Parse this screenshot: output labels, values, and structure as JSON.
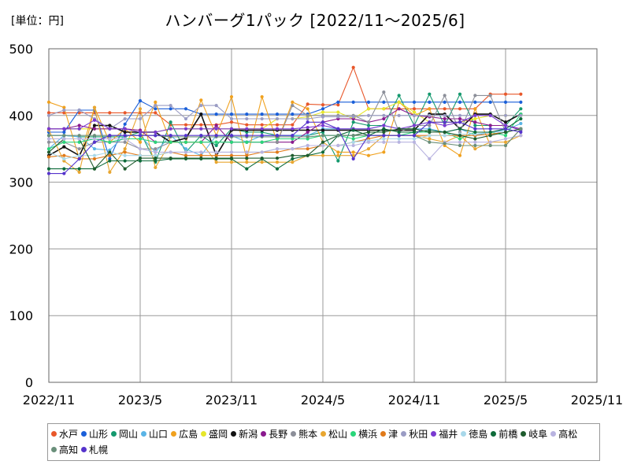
{
  "unit_label": "[単位：円]",
  "chart_data": {
    "type": "line",
    "title": "ハンバーグ1パック [2022/11～2025/6]",
    "xlabel": "",
    "ylabel": "",
    "ylim": [
      0,
      500
    ],
    "yticks": [
      0,
      100,
      200,
      300,
      400,
      500
    ],
    "x_range": [
      "2022-11",
      "2025-11"
    ],
    "x_tick_labels": [
      "2022/11",
      "2023/5",
      "2023/11",
      "2024/5",
      "2024/11",
      "2025/5",
      "2025/11"
    ],
    "grid": true,
    "legend_position": "bottom",
    "x": [
      "2022-11",
      "2022-12",
      "2023-01",
      "2023-02",
      "2023-03",
      "2023-04",
      "2023-05",
      "2023-06",
      "2023-07",
      "2023-08",
      "2023-09",
      "2023-10",
      "2023-11",
      "2023-12",
      "2024-01",
      "2024-02",
      "2024-03",
      "2024-04",
      "2024-05",
      "2024-06",
      "2024-07",
      "2024-08",
      "2024-09",
      "2024-10",
      "2024-11",
      "2024-12",
      "2025-01",
      "2025-02",
      "2025-03",
      "2025-04",
      "2025-05",
      "2025-06"
    ],
    "series": [
      {
        "name": "水戸",
        "color": "#e8572a",
        "values": [
          404,
          404,
          404,
          404,
          404,
          404,
          404,
          404,
          386,
          386,
          386,
          386,
          390,
          386,
          386,
          386,
          386,
          417,
          416,
          416,
          472,
          410,
          410,
          410,
          410,
          410,
          410,
          410,
          410,
          432,
          432,
          432
        ]
      },
      {
        "name": "山形",
        "color": "#1a5fd9",
        "values": [
          375,
          375,
          408,
          408,
          335,
          387,
          422,
          410,
          410,
          410,
          402,
          402,
          402,
          402,
          402,
          402,
          402,
          402,
          410,
          420,
          420,
          420,
          420,
          420,
          420,
          420,
          420,
          420,
          420,
          420,
          420,
          420
        ]
      },
      {
        "name": "岡山",
        "color": "#14996e",
        "values": [
          370,
          370,
          368,
          368,
          368,
          368,
          375,
          330,
          390,
          345,
          370,
          355,
          380,
          375,
          375,
          370,
          370,
          370,
          375,
          332,
          390,
          385,
          385,
          430,
          385,
          432,
          385,
          432,
          385,
          385,
          385,
          410
        ]
      },
      {
        "name": "山口",
        "color": "#5ab4e6",
        "values": [
          350,
          370,
          368,
          350,
          348,
          370,
          370,
          345,
          370,
          350,
          340,
          370,
          370,
          360,
          370,
          370,
          370,
          370,
          380,
          380,
          380,
          380,
          385,
          380,
          380,
          380,
          375,
          380,
          370,
          375,
          378,
          388
        ]
      },
      {
        "name": "広島",
        "color": "#f0a11e",
        "values": [
          420,
          412,
          335,
          412,
          360,
          380,
          360,
          420,
          360,
          360,
          423,
          370,
          428,
          335,
          428,
          360,
          420,
          410,
          360,
          345,
          345,
          340,
          345,
          420,
          400,
          410,
          355,
          340,
          410,
          355,
          355,
          380
        ]
      },
      {
        "name": "盛岡",
        "color": "#e6e62a",
        "values": [
          380,
          380,
          380,
          380,
          380,
          380,
          375,
          375,
          380,
          380,
          380,
          380,
          380,
          380,
          380,
          395,
          395,
          398,
          405,
          405,
          395,
          410,
          410,
          420,
          405,
          390,
          390,
          390,
          395,
          400,
          400,
          400
        ]
      },
      {
        "name": "新潟",
        "color": "#111111",
        "values": [
          340,
          353,
          340,
          385,
          385,
          375,
          375,
          375,
          360,
          366,
          402,
          340,
          378,
          378,
          378,
          378,
          378,
          378,
          378,
          378,
          378,
          378,
          378,
          378,
          378,
          402,
          402,
          380,
          402,
          402,
          390,
          402
        ]
      },
      {
        "name": "長野",
        "color": "#8a1a8e",
        "values": [
          380,
          380,
          385,
          380,
          380,
          380,
          378,
          360,
          360,
          360,
          360,
          385,
          360,
          360,
          360,
          360,
          360,
          375,
          390,
          395,
          395,
          390,
          395,
          410,
          400,
          398,
          395,
          395,
          390,
          385,
          385,
          380
        ]
      },
      {
        "name": "熊本",
        "color": "#8c8f99",
        "values": [
          360,
          360,
          350,
          360,
          360,
          360,
          350,
          350,
          360,
          360,
          360,
          360,
          360,
          360,
          360,
          360,
          415,
          400,
          400,
          400,
          400,
          390,
          435,
          375,
          385,
          385,
          430,
          375,
          430,
          430,
          375,
          380
        ]
      },
      {
        "name": "松山",
        "color": "#e8a630",
        "values": [
          378,
          332,
          315,
          412,
          315,
          350,
          410,
          322,
          360,
          360,
          360,
          330,
          330,
          330,
          330,
          330,
          330,
          340,
          340,
          340,
          340,
          350,
          370,
          370,
          370,
          365,
          360,
          370,
          350,
          360,
          360,
          370
        ]
      },
      {
        "name": "横浜",
        "color": "#2ad67a",
        "values": [
          350,
          360,
          360,
          365,
          360,
          365,
          365,
          360,
          360,
          360,
          360,
          360,
          360,
          360,
          360,
          365,
          365,
          365,
          370,
          370,
          365,
          370,
          370,
          370,
          375,
          375,
          375,
          365,
          375,
          375,
          370,
          402
        ]
      },
      {
        "name": "津",
        "color": "#e07a1a",
        "values": [
          338,
          340,
          335,
          335,
          340,
          345,
          340,
          340,
          345,
          340,
          340,
          340,
          340,
          340,
          345,
          345,
          350,
          350,
          355,
          355,
          360,
          365,
          370,
          370,
          370,
          370,
          370,
          370,
          370,
          372,
          375,
          380
        ]
      },
      {
        "name": "秋田",
        "color": "#9a9cc4",
        "values": [
          400,
          408,
          408,
          395,
          380,
          395,
          395,
          415,
          415,
          395,
          415,
          415,
          395,
          395,
          395,
          395,
          395,
          395,
          398,
          398,
          398,
          400,
          400,
          400,
          400,
          400,
          400,
          400,
          400,
          400,
          400,
          400
        ]
      },
      {
        "name": "福井",
        "color": "#7a3ad1",
        "values": [
          380,
          380,
          380,
          393,
          380,
          380,
          375,
          375,
          380,
          380,
          380,
          380,
          380,
          380,
          380,
          380,
          380,
          382,
          385,
          380,
          380,
          380,
          385,
          380,
          385,
          390,
          385,
          390,
          400,
          400,
          385,
          378
        ]
      },
      {
        "name": "徳島",
        "color": "#a8d8ea",
        "values": [
          345,
          335,
          340,
          340,
          345,
          340,
          340,
          340,
          345,
          345,
          345,
          345,
          345,
          345,
          345,
          350,
          350,
          355,
          355,
          355,
          360,
          362,
          365,
          365,
          365,
          370,
          370,
          372,
          372,
          375,
          375,
          380
        ]
      },
      {
        "name": "前橋",
        "color": "#0e6b3a",
        "values": [
          320,
          320,
          320,
          320,
          332,
          332,
          332,
          332,
          335,
          335,
          335,
          335,
          335,
          320,
          335,
          320,
          335,
          340,
          345,
          370,
          378,
          370,
          380,
          375,
          375,
          378,
          375,
          380,
          375,
          375,
          380,
          395
        ]
      },
      {
        "name": "岐阜",
        "color": "#1f5c2e",
        "values": [
          345,
          365,
          365,
          320,
          345,
          320,
          336,
          336,
          336,
          336,
          336,
          336,
          336,
          336,
          336,
          336,
          340,
          340,
          360,
          370,
          370,
          375,
          375,
          380,
          380,
          375,
          375,
          370,
          365,
          370,
          375,
          380
        ]
      },
      {
        "name": "高松",
        "color": "#b8b3e0",
        "values": [
          365,
          365,
          365,
          365,
          365,
          365,
          350,
          345,
          345,
          345,
          345,
          345,
          345,
          345,
          345,
          350,
          350,
          355,
          355,
          355,
          355,
          360,
          360,
          360,
          360,
          335,
          360,
          360,
          360,
          360,
          365,
          370
        ]
      },
      {
        "name": "高知",
        "color": "#6a8f7a",
        "values": [
          370,
          370,
          370,
          370,
          370,
          370,
          370,
          370,
          368,
          368,
          368,
          368,
          368,
          368,
          368,
          368,
          368,
          368,
          370,
          370,
          370,
          370,
          370,
          370,
          370,
          360,
          358,
          355,
          355,
          355,
          355,
          380
        ]
      },
      {
        "name": "札幌",
        "color": "#5533cc",
        "values": [
          313,
          313,
          335,
          360,
          370,
          370,
          370,
          370,
          370,
          370,
          370,
          370,
          370,
          370,
          370,
          370,
          370,
          390,
          390,
          380,
          335,
          370,
          370,
          370,
          370,
          390,
          390,
          390,
          380,
          380,
          380,
          375
        ]
      }
    ]
  }
}
